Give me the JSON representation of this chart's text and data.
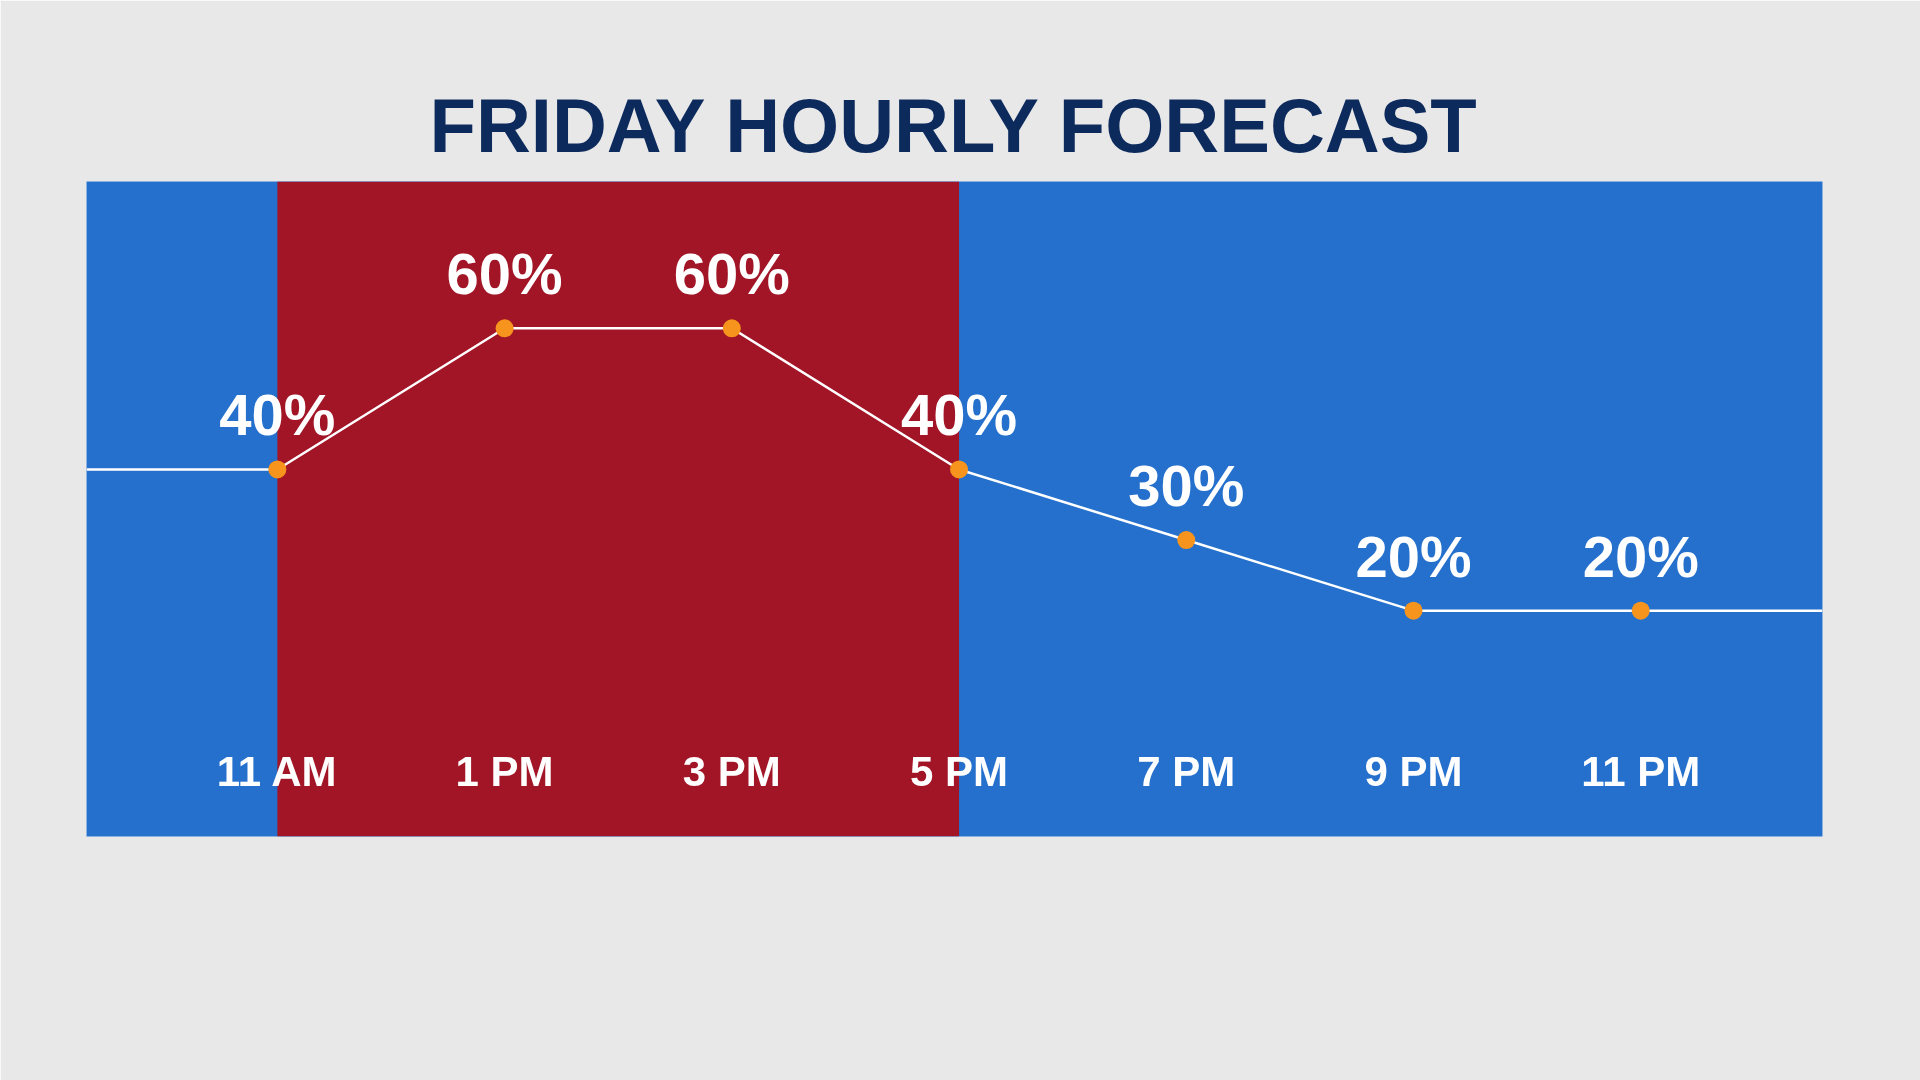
{
  "chart_data": {
    "type": "line",
    "title": "FRIDAY HOURLY FORECAST",
    "categories": [
      "11 AM",
      "1 PM",
      "3 PM",
      "5 PM",
      "7 PM",
      "9 PM",
      "11 PM"
    ],
    "values": [
      40,
      60,
      60,
      40,
      30,
      20,
      20
    ],
    "color": "#ffffff",
    "marker": "circle",
    "value_labels": [
      "40%",
      "60%",
      "60%",
      "40%",
      "30%",
      "20%",
      "20%"
    ],
    "bands": [
      {
        "axis": "x",
        "from": "11 AM",
        "to": "5 PM",
        "color": "#a11526"
      }
    ]
  }
}
